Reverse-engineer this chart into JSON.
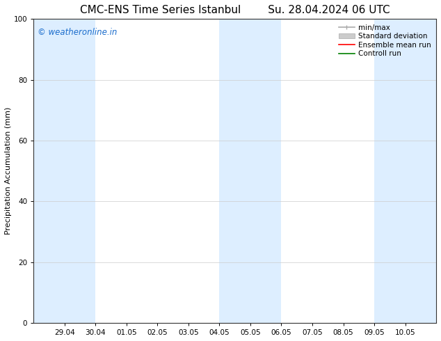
{
  "title_left": "CMC-ENS Time Series Istanbul",
  "title_right": "Su. 28.04.2024 06 UTC",
  "ylabel": "Precipitation Accumulation (mm)",
  "ylim": [
    0,
    100
  ],
  "yticks": [
    0,
    20,
    40,
    60,
    80,
    100
  ],
  "xtick_labels": [
    "29.04",
    "30.04",
    "01.05",
    "02.05",
    "03.05",
    "04.05",
    "05.05",
    "06.05",
    "07.05",
    "08.05",
    "09.05",
    "10.05"
  ],
  "shade_color": "#ddeeff",
  "watermark_text": "© weatheronline.in",
  "watermark_color": "#1a6ccc",
  "legend_items": [
    {
      "label": "min/max",
      "color": "#aaaaaa",
      "lw": 1.2,
      "style": "minmax"
    },
    {
      "label": "Standard deviation",
      "color": "#cccccc",
      "lw": 5,
      "style": "bar"
    },
    {
      "label": "Ensemble mean run",
      "color": "red",
      "lw": 1.2,
      "style": "line"
    },
    {
      "label": "Controll run",
      "color": "green",
      "lw": 1.2,
      "style": "line"
    }
  ],
  "bg_color": "#ffffff",
  "grid_color": "#cccccc",
  "title_fontsize": 11,
  "tick_fontsize": 7.5,
  "legend_fontsize": 7.5,
  "ylabel_fontsize": 8
}
